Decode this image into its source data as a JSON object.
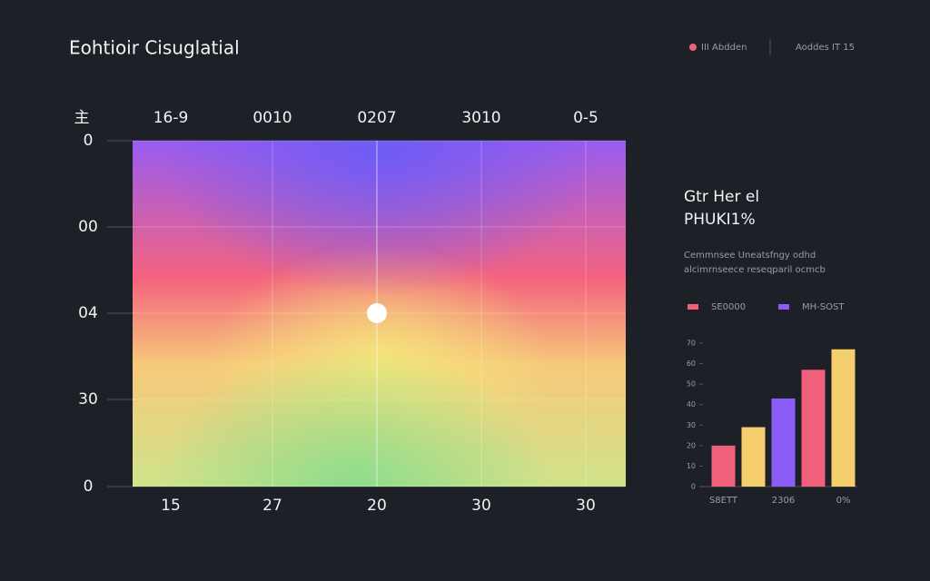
{
  "header": {
    "title": "Eohtioir Cisuglatial",
    "legend": "III Abdden",
    "status": "Aoddes IT 15"
  },
  "chart_data": [
    {
      "type": "heatmap",
      "corner_label": "主",
      "x_labels_top": [
        "16-9",
        "0010",
        "0207",
        "3010",
        "0-5"
      ],
      "x_labels_bottom": [
        "15",
        "27",
        "20",
        "30",
        "30"
      ],
      "y_labels": [
        "0",
        "00",
        "04",
        "30",
        "0"
      ]
    },
    {
      "type": "bar",
      "title": "Gtr Her el",
      "subtitle": "PHUKI1%",
      "description": [
        "Cemmnsee Uneatsfngy odhd",
        "alcimrnseece reseqparil ocmcb"
      ],
      "legend": [
        {
          "name": "SE0000",
          "color": "#f0607a"
        },
        {
          "name": "MH-SOST",
          "color": "#8b5cf6"
        }
      ],
      "categories": [
        "S8ETT",
        null,
        "2306",
        null,
        "0%"
      ],
      "values": [
        20,
        29,
        43,
        57,
        67
      ],
      "colors": [
        "#f0607a",
        "#f5cf6e",
        "#8b5cf6",
        "#f0607a",
        "#f5cf6e"
      ],
      "ylim": [
        0,
        70
      ],
      "yticks": [
        0,
        10,
        20,
        30,
        40,
        50,
        60,
        70
      ]
    }
  ]
}
